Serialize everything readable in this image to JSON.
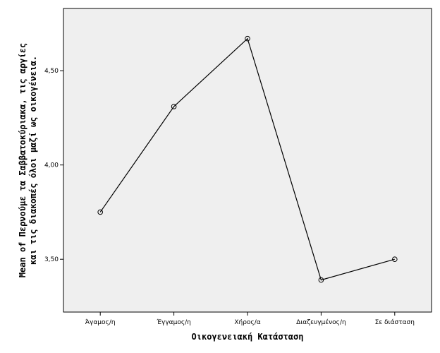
{
  "chart_data": {
    "type": "line",
    "xlabel": "Οικογενειακή Κατάσταση",
    "ylabel_lines": [
      "Mean of Περνούμε τα Σαββατοκύριακα, τις αργίες",
      "και τις διακοπές όλοι μαζί ως οικογένεια."
    ],
    "categories": [
      "Άγαμος/η",
      "Έγγαμος/η",
      "Χήρος/α",
      "Διαζευγμένος/η",
      "Σε διάσταση"
    ],
    "values": [
      3.75,
      4.31,
      4.67,
      3.39,
      3.5
    ],
    "ylim": [
      3.22,
      4.83
    ],
    "yticks": [
      3.5,
      4.0,
      4.5
    ],
    "ytick_labels": [
      "3,50",
      "4,00",
      "4,50"
    ],
    "grid": false,
    "plot_bg": "#efefef",
    "line_color": "#000000",
    "marker": "open-circle"
  }
}
